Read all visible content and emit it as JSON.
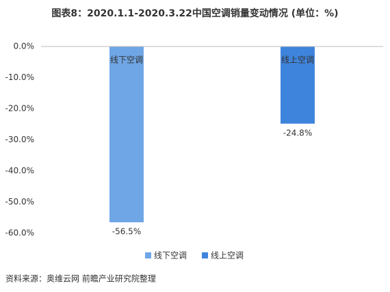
{
  "chart_data": {
    "type": "bar",
    "title": "图表8：2020.1.1-2020.3.22中国空调销量变动情况 (单位：%)",
    "categories": [
      "线下空调",
      "线上空调"
    ],
    "values": [
      -56.5,
      -24.8
    ],
    "value_labels": [
      "-56.5%",
      "-24.8%"
    ],
    "colors": [
      "#6fa6e6",
      "#3f84dc"
    ],
    "ylim": [
      -60,
      0
    ],
    "yticks": [
      {
        "value": 0,
        "label": "0.0%"
      },
      {
        "value": -10,
        "label": "-10.0%"
      },
      {
        "value": -20,
        "label": "-20.0%"
      },
      {
        "value": -30,
        "label": "-30.0%"
      },
      {
        "value": -40,
        "label": "-40.0%"
      },
      {
        "value": -50,
        "label": "-50.0%"
      },
      {
        "value": -60,
        "label": "-60.0%"
      }
    ],
    "grid": false,
    "source": "资料来源：奥维云网 前瞻产业研究院整理"
  }
}
